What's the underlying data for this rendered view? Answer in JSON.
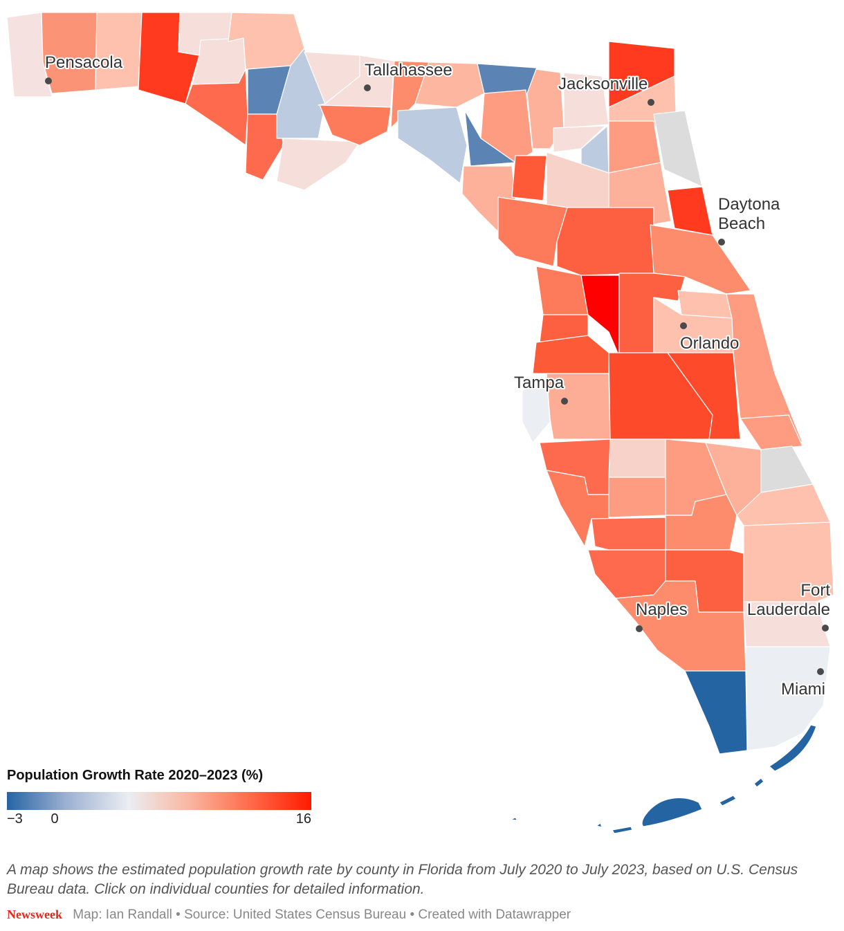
{
  "legend": {
    "title": "Population Growth Rate 2020–2023 (%)",
    "min_label": "−3",
    "mid_label": "0",
    "max_label": "16",
    "min": -3,
    "max": 16,
    "colors": [
      "#2564a3",
      "#9fb2d3",
      "#ebeef2",
      "#f9b6a0",
      "#ff6a4a",
      "#ff1a00"
    ]
  },
  "cities": [
    {
      "name": "Pensacola"
    },
    {
      "name": "Tallahassee"
    },
    {
      "name": "Jacksonville"
    },
    {
      "name": "Daytona Beach",
      "lines": [
        "Daytona",
        "Beach"
      ]
    },
    {
      "name": "Orlando"
    },
    {
      "name": "Tampa"
    },
    {
      "name": "Naples"
    },
    {
      "name": "Fort Lauderdale",
      "lines": [
        "Fort",
        "Lauderdale"
      ]
    },
    {
      "name": "Miami"
    }
  ],
  "caption": "A map shows the estimated population growth rate by county in Florida from July 2020 to July 2023, based on U.S. Census Bureau data. Click on individual counties for detailed information.",
  "footer": {
    "brand": "Newsweek",
    "credits": "Map: Ian Randall • Source: United States Census Bureau • Created with Datawrapper"
  },
  "colors": {
    "neutral_gray": "#dcdcdc"
  }
}
